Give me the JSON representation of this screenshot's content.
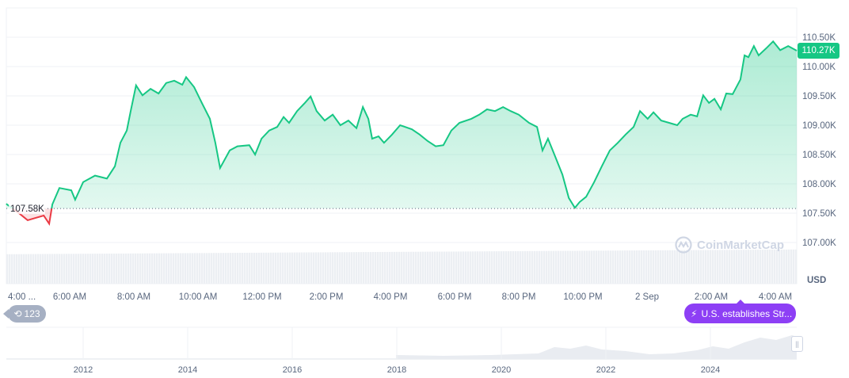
{
  "chart_data": {
    "type": "area",
    "title": "",
    "xlabel": "",
    "ylabel": "",
    "currency": "USD",
    "x_unit": "hours since 1 Sep 00:00",
    "baseline": 107.58,
    "baseline_label": "107.58K",
    "current_price_label": "110.27K",
    "ylim": [
      106.8,
      110.65
    ],
    "y_ticks": [
      {
        "value": 110.5,
        "label": "110.50K"
      },
      {
        "value": 110.0,
        "label": "110.00K"
      },
      {
        "value": 109.5,
        "label": "109.50K"
      },
      {
        "value": 109.0,
        "label": "109.00K"
      },
      {
        "value": 108.5,
        "label": "108.50K"
      },
      {
        "value": 108.0,
        "label": "108.00K"
      },
      {
        "value": 107.5,
        "label": "107.50K"
      },
      {
        "value": 107.0,
        "label": "107.00K"
      }
    ],
    "x_ticks": [
      {
        "value": 4.2,
        "label": "4:00 ..."
      },
      {
        "value": 6,
        "label": "6:00 AM"
      },
      {
        "value": 8,
        "label": "8:00 AM"
      },
      {
        "value": 10,
        "label": "10:00 AM"
      },
      {
        "value": 12,
        "label": "12:00 PM"
      },
      {
        "value": 14,
        "label": "2:00 PM"
      },
      {
        "value": 16,
        "label": "4:00 PM"
      },
      {
        "value": 18,
        "label": "6:00 PM"
      },
      {
        "value": 20,
        "label": "8:00 PM"
      },
      {
        "value": 22,
        "label": "10:00 PM"
      },
      {
        "value": 24,
        "label": "2 Sep"
      },
      {
        "value": 26,
        "label": "2:00 AM"
      },
      {
        "value": 28,
        "label": "4:00 AM"
      }
    ],
    "xlim": [
      4.02,
      28.67
    ],
    "series": [
      {
        "x": [
          4.02,
          4.44,
          4.69,
          4.94,
          5.19,
          5.36,
          5.46,
          5.68,
          6.05,
          6.17,
          6.42,
          6.79,
          7.16,
          7.41,
          7.58,
          7.78,
          7.9,
          8.07,
          8.27,
          8.52,
          8.77,
          9.01,
          9.26,
          9.51,
          9.63,
          9.88,
          10.12,
          10.37,
          10.54,
          10.69,
          10.99,
          11.23,
          11.6,
          11.78,
          11.98,
          12.22,
          12.47,
          12.67,
          12.84,
          13.09,
          13.33,
          13.51,
          13.7,
          13.95,
          14.2,
          14.44,
          14.69,
          14.94,
          15.14,
          15.31,
          15.43,
          15.63,
          15.8,
          16.05,
          16.3,
          16.67,
          16.91,
          17.16,
          17.41,
          17.65,
          17.9,
          18.15,
          18.52,
          18.77,
          19.01,
          19.26,
          19.51,
          19.75,
          20.0,
          20.32,
          20.57,
          20.74,
          20.91,
          21.11,
          21.36,
          21.56,
          21.75,
          21.9,
          22.1,
          22.35,
          22.59,
          22.84,
          23.09,
          23.33,
          23.58,
          23.78,
          24.02,
          24.2,
          24.44,
          24.69,
          24.94,
          25.11,
          25.36,
          25.56,
          25.75,
          25.93,
          26.1,
          26.3,
          26.47,
          26.67,
          26.91,
          27.04,
          27.16,
          27.33,
          27.48,
          27.73,
          27.93,
          28.15,
          28.4,
          28.67
        ],
        "values": [
          107.66,
          107.49,
          107.38,
          107.42,
          107.46,
          107.32,
          107.65,
          107.93,
          107.89,
          107.73,
          108.03,
          108.14,
          108.09,
          108.3,
          108.7,
          108.91,
          109.24,
          109.68,
          109.51,
          109.62,
          109.54,
          109.72,
          109.76,
          109.69,
          109.82,
          109.65,
          109.38,
          109.11,
          108.7,
          108.27,
          108.57,
          108.64,
          108.66,
          108.5,
          108.77,
          108.91,
          108.97,
          109.14,
          109.04,
          109.24,
          109.38,
          109.49,
          109.24,
          109.08,
          109.18,
          109.0,
          109.08,
          108.95,
          109.31,
          109.11,
          108.77,
          108.81,
          108.7,
          108.84,
          109.0,
          108.93,
          108.84,
          108.73,
          108.64,
          108.66,
          108.91,
          109.04,
          109.11,
          109.18,
          109.27,
          109.24,
          109.31,
          109.24,
          109.18,
          109.04,
          108.97,
          108.57,
          108.77,
          108.5,
          108.16,
          107.76,
          107.59,
          107.69,
          107.78,
          108.03,
          108.3,
          108.57,
          108.7,
          108.84,
          108.97,
          109.24,
          109.11,
          109.22,
          109.08,
          109.04,
          109.0,
          109.11,
          109.18,
          109.15,
          109.51,
          109.38,
          109.45,
          109.27,
          109.54,
          109.53,
          109.78,
          110.19,
          110.16,
          110.35,
          110.19,
          110.32,
          110.43,
          110.28,
          110.35,
          110.27
        ]
      }
    ],
    "colors": {
      "up": "#16c784",
      "down": "#ea3943",
      "grid": "#eff2f5",
      "axis_text": "#58667e",
      "volume": "#eceff3"
    },
    "navigator": {
      "year_labels": [
        "2012",
        "2014",
        "2016",
        "2018",
        "2020",
        "2022",
        "2024"
      ]
    }
  },
  "annotations": {
    "events_count": "123",
    "events_icon": "history-clock-icon",
    "news_label": "U.S. establishes Str...",
    "news_icon": "lightning-icon",
    "news_color": "#8d3ff5"
  },
  "watermark": "CoinMarketCap",
  "handle_glyph": "||"
}
